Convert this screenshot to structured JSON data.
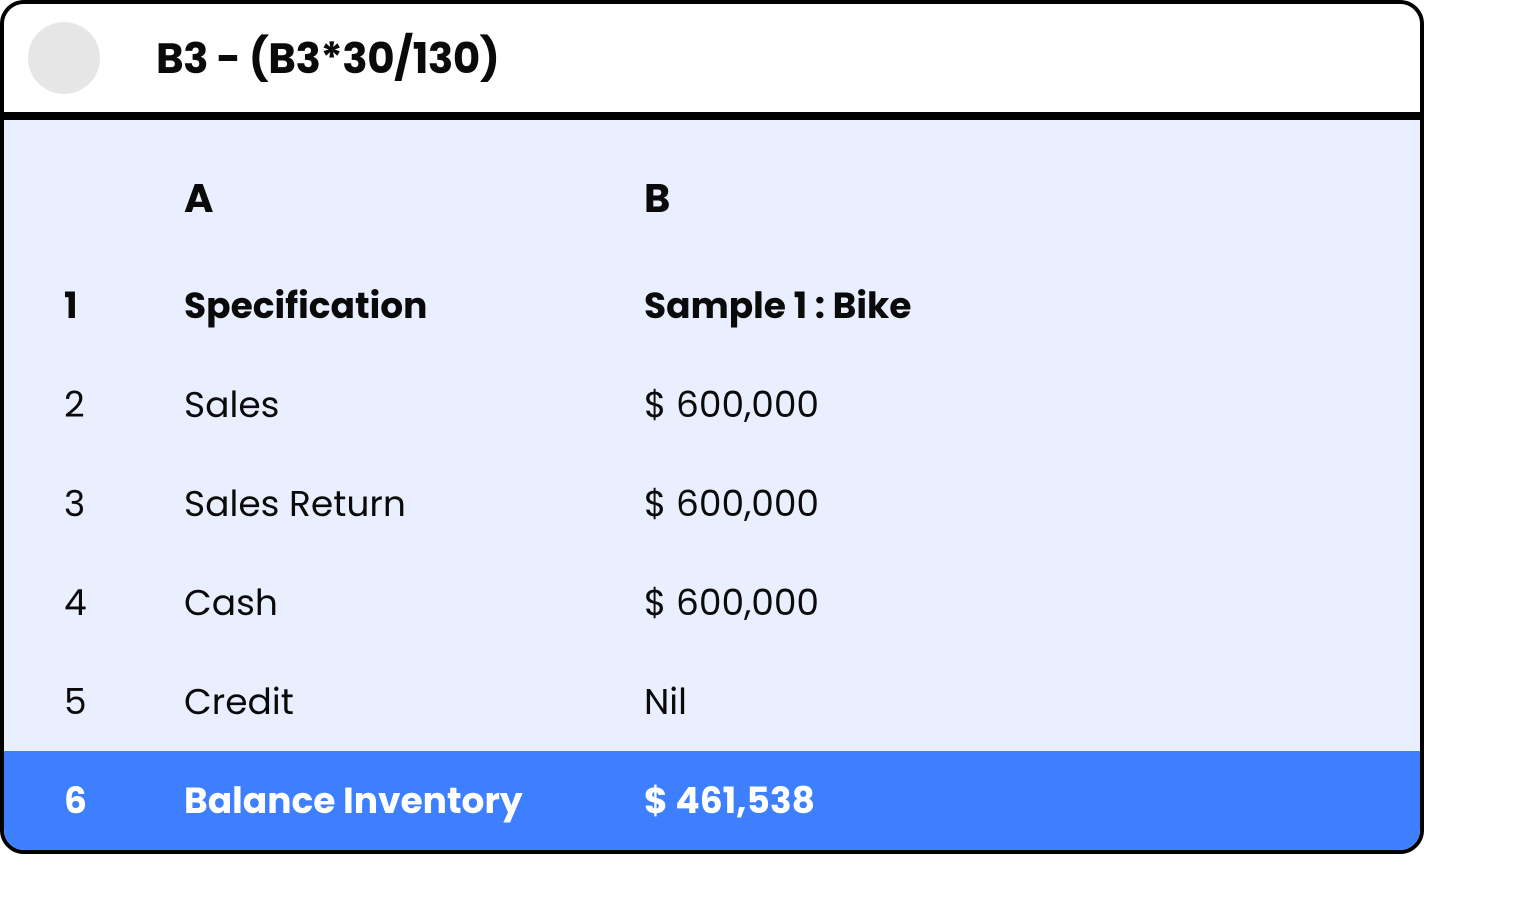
{
  "formula_bar": {
    "formula": "B3 - (B3*30/130)"
  },
  "sheet": {
    "columns": {
      "a_label": "A",
      "b_label": "B"
    },
    "rows": [
      {
        "num": "1",
        "a": "Specification",
        "b": "Sample 1 : Bike",
        "bold": true
      },
      {
        "num": "2",
        "a": "Sales",
        "b": "$ 600,000",
        "bold": false
      },
      {
        "num": "3",
        "a": "Sales Return",
        "b": "$ 600,000",
        "bold": false
      },
      {
        "num": "4",
        "a": "Cash",
        "b": "$ 600,000",
        "bold": false
      },
      {
        "num": "5",
        "a": "Credit",
        "b": "Nil",
        "bold": false
      },
      {
        "num": "6",
        "a": "Balance Inventory",
        "b": "$ 461,538",
        "bold": true,
        "highlight": true
      }
    ]
  },
  "colors": {
    "sheet_bg": "#eaefff",
    "highlight_bg": "#3e7fff",
    "highlight_text": "#ffffff",
    "text": "#0a0a0a",
    "avatar_bg": "#e6e6e6",
    "border": "#000000"
  }
}
